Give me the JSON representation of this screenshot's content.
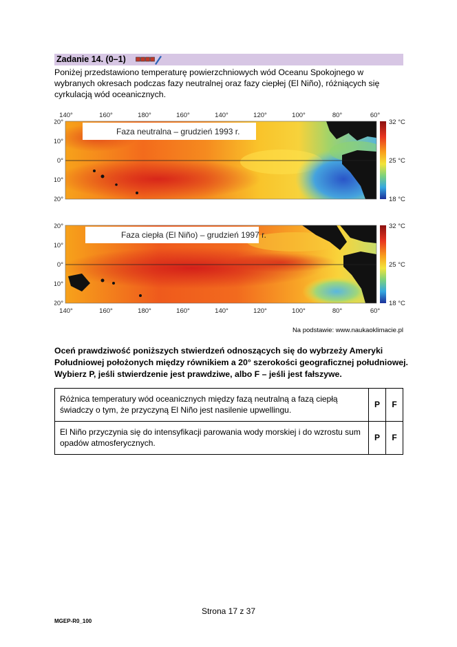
{
  "header": {
    "title": "Zadanie 14. (0–1)",
    "icon": "pencil-score-boxes-icon"
  },
  "intro": "Poniżej przedstawiono temperaturę powierzchniowych wód Oceanu Spokojnego w wybranych okresach podczas fazy neutralnej oraz fazy ciepłej (El Niño), różniących się cyrkulacją wód oceanicznych.",
  "maps": [
    {
      "caption": "Faza neutralna – grudzień 1993 r.",
      "lon_labels": [
        "140°",
        "160°",
        "180°",
        "160°",
        "140°",
        "120°",
        "100°",
        "80°",
        "60°"
      ],
      "lat_labels": [
        "20°",
        "10°",
        "0°",
        "10°",
        "20°"
      ],
      "scale_labels": [
        "32 °C",
        "25 °C",
        "18 °C"
      ]
    },
    {
      "caption": "Faza ciepła (El Niño) – grudzień 1997 r.",
      "lon_labels": [
        "140°",
        "160°",
        "180°",
        "160°",
        "140°",
        "120°",
        "100°",
        "80°",
        "60°"
      ],
      "lat_labels": [
        "20°",
        "10°",
        "0°",
        "10°",
        "20°"
      ],
      "scale_labels": [
        "32 °C",
        "25 °C",
        "18 °C"
      ]
    }
  ],
  "source": "Na podstawie: www.naukaoklimacie.pl",
  "task": "Oceń prawdziwość poniższych stwierdzeń odnoszących się do wybrzeży Ameryki Południowej położonych między równikiem a 20° szerokości geograficznej południowej. Wybierz P, jeśli stwierdzenie jest prawdziwe, albo F – jeśli jest fałszywe.",
  "statements": [
    {
      "text": "Różnica temperatury wód oceanicznych między fazą neutralną a fazą ciepłą świadczy o tym, że przyczyną El Niño jest nasilenie upwellingu.",
      "p": "P",
      "f": "F"
    },
    {
      "text": "El Niño przyczynia się do intensyfikacji parowania wody morskiej i do wzrostu sum opadów atmosferycznych.",
      "p": "P",
      "f": "F"
    }
  ],
  "footer": {
    "page": "Strona 17 z 37",
    "code": "MGEP-R0_100"
  }
}
